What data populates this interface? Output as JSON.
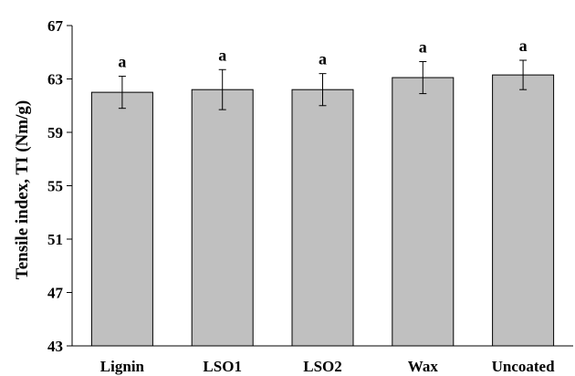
{
  "chart_data": {
    "type": "bar",
    "title": "",
    "xlabel": "",
    "ylabel": "Tensile index, TI (Nm/g)",
    "ylim": [
      43,
      67
    ],
    "yticks": [
      43,
      47,
      51,
      55,
      59,
      63,
      67
    ],
    "categories": [
      "Lignin",
      "LSO1",
      "LSO2",
      "Wax",
      "Uncoated"
    ],
    "values": [
      62.0,
      62.2,
      62.2,
      63.1,
      63.3
    ],
    "errors": [
      1.2,
      1.5,
      1.2,
      1.2,
      1.1
    ],
    "significance": [
      "a",
      "a",
      "a",
      "a",
      "a"
    ],
    "bar_color": "#c0c0c0",
    "grid": false,
    "legend": "none"
  }
}
